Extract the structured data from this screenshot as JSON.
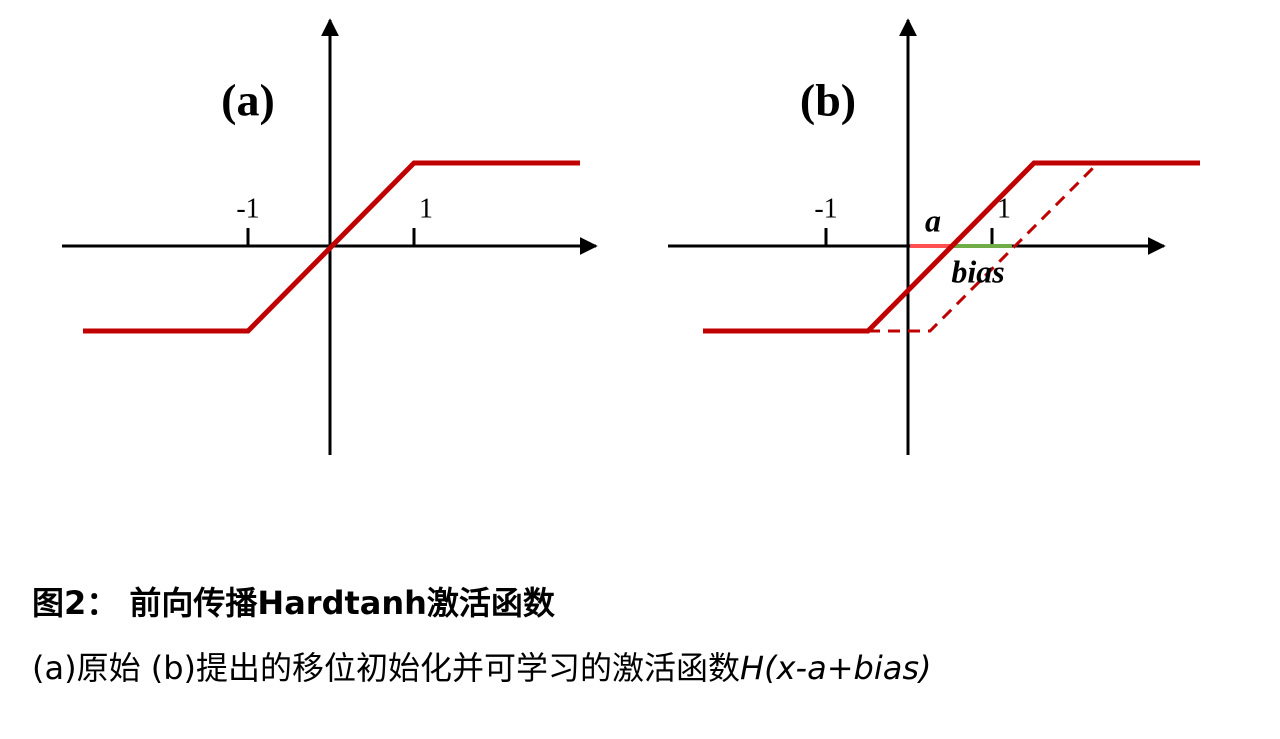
{
  "panel_a": {
    "label": "(a)",
    "ticks": [
      "-1",
      "1"
    ]
  },
  "panel_b": {
    "label": "(b)",
    "ticks": [
      "-1",
      "1"
    ],
    "annotations": [
      "a",
      "bias"
    ]
  },
  "caption": {
    "title": "图2：  前向传播Hardtanh激活函数",
    "text": "(a)原始  (b)提出的移位初始化并可学习的激活函数",
    "formula": "H(x-a+bias)"
  }
}
